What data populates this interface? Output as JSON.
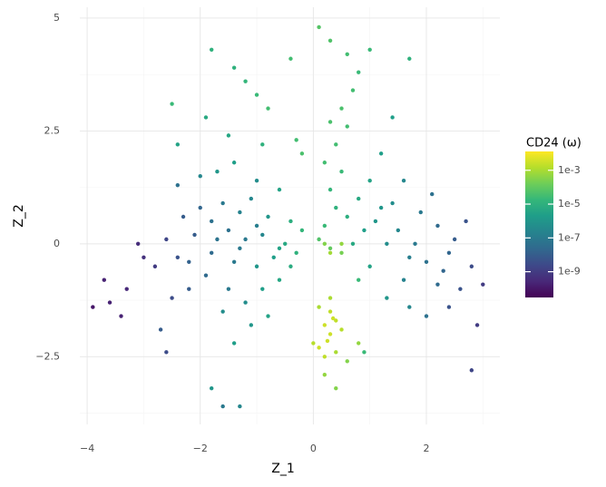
{
  "chart_data": {
    "type": "scatter",
    "x_label": "Z_1",
    "y_label": "Z_2",
    "xlim": [
      -4.13,
      3.3
    ],
    "ylim": [
      -4.0,
      5.24
    ],
    "xticks": [
      {
        "value": -4,
        "label": "−4"
      },
      {
        "value": -2,
        "label": "−2"
      },
      0,
      2
    ],
    "yticks": [
      {
        "value": -2.5,
        "label": "−2.5"
      },
      0,
      2.5,
      5
    ],
    "grid": true,
    "colorbar_title": "CD24 (ω)",
    "color_scale": "log",
    "colormap": "viridis",
    "clim": [
      3e-11,
      0.013
    ],
    "cticks": [
      {
        "value": 0.001,
        "label": "1e-3"
      },
      {
        "value": 1e-05,
        "label": "1e-5"
      },
      {
        "value": 1e-07,
        "label": "1e-7"
      },
      {
        "value": 1e-09,
        "label": "1e-9"
      }
    ],
    "x": [
      -1.2,
      -1.5,
      -0.9,
      -1.8,
      -2.1,
      -2.4,
      -1.0,
      -0.7,
      -0.5,
      -0.3,
      -1.3,
      -1.6,
      -1.1,
      -0.8,
      -2.0,
      -2.3,
      -1.9,
      -1.5,
      -1.2,
      -0.9,
      -0.6,
      -1.4,
      -1.7,
      -2.6,
      -2.8,
      -2.2,
      -1.0,
      -1.4,
      -1.7,
      -2.0,
      -0.6,
      -0.4,
      -0.2,
      -1.1,
      -1.4,
      -0.8,
      -1.6,
      -2.5,
      -3.0,
      -3.3,
      -3.6,
      -3.1,
      -2.4,
      -2.7,
      -1.3,
      -1.0,
      -0.6,
      -0.4,
      -1.8,
      -2.2,
      -1.4,
      -1.2,
      -1.0,
      -0.8,
      -1.8,
      -0.3,
      -0.2,
      -2.4,
      -1.9,
      -1.5,
      -0.9,
      -2.5,
      -0.4,
      0.4,
      0.6,
      0.3,
      0.5,
      0.8,
      0.2,
      0.1,
      0.3,
      0.5,
      0.4,
      0.6,
      0.5,
      0.7,
      0.8,
      0.6,
      0.3,
      0.1,
      1.0,
      1.2,
      0.9,
      0.7,
      1.0,
      0.8,
      1.2,
      0.3,
      0.2,
      1.5,
      1.8,
      2.0,
      2.3,
      2.6,
      1.6,
      1.4,
      1.9,
      2.2,
      2.5,
      2.8,
      3.0,
      2.9,
      2.8,
      2.4,
      1.3,
      1.7,
      2.0,
      1.1,
      1.6,
      2.1,
      1.3,
      2.4,
      1.7,
      2.7,
      1.4,
      1.7,
      1.0,
      2.2,
      0.9,
      0.3,
      0.2,
      0.4,
      0.3,
      0.1,
      0.2,
      0.0,
      0.4,
      0.5,
      0.3,
      0.2,
      0.6,
      0.8,
      0.1,
      0.3,
      0.5,
      0.2,
      0.4,
      0.25,
      0.35,
      -3.7,
      -3.9,
      -3.4,
      -2.6,
      -1.6,
      -1.3,
      -1.8
    ],
    "y": [
      0.1,
      0.3,
      0.2,
      -0.2,
      0.2,
      -0.3,
      -0.5,
      -0.3,
      0,
      -0.2,
      0.7,
      0.9,
      1.0,
      0.6,
      0.8,
      0.6,
      -0.7,
      -1.0,
      -1.3,
      -1.0,
      -0.8,
      -0.4,
      0.1,
      0.1,
      -0.5,
      -1.0,
      1.4,
      1.8,
      1.6,
      1.5,
      1.2,
      0.5,
      0.3,
      -1.8,
      -2.2,
      -1.6,
      -1.5,
      -1.2,
      -0.3,
      -1.0,
      -1.3,
      0,
      1.3,
      -1.9,
      -0.1,
      0.4,
      -0.1,
      -0.5,
      0.5,
      -0.4,
      3.9,
      3.6,
      3.3,
      3.0,
      4.3,
      2.3,
      2.0,
      2.2,
      2.8,
      2.4,
      2.2,
      3.1,
      4.1,
      0.8,
      0.6,
      1.2,
      1.6,
      1.0,
      0.4,
      0.1,
      -0.1,
      -0.2,
      2.2,
      2.6,
      3.0,
      3.4,
      3.8,
      4.2,
      4.5,
      4.8,
      1.4,
      0.8,
      0.3,
      0.0,
      -0.5,
      -0.8,
      2.0,
      2.7,
      1.8,
      0.3,
      0,
      -0.4,
      -0.6,
      -1.0,
      -0.8,
      0.9,
      0.7,
      0.4,
      0.1,
      -0.5,
      -0.9,
      -1.8,
      -2.8,
      -1.4,
      -1.2,
      -1.4,
      -1.6,
      0.5,
      1.4,
      1.1,
      0.0,
      -0.2,
      -0.3,
      0.5,
      2.8,
      4.1,
      4.3,
      -0.9,
      -2.4,
      -1.5,
      -1.8,
      -1.7,
      -2.0,
      -2.3,
      -2.5,
      -2.2,
      -2.4,
      -1.9,
      -1.2,
      -2.9,
      -2.6,
      -2.2,
      -1.4,
      -0.2,
      0.0,
      0.0,
      -3.2,
      -2.15,
      -1.65,
      -0.8,
      -1.4,
      -1.6,
      -2.4,
      -3.6,
      -3.6,
      -3.2
    ],
    "values": [
      1e-07,
      5e-08,
      3e-07,
      3e-08,
      1e-08,
      5e-09,
      1e-06,
      2e-06,
      5e-06,
      1e-05,
      2e-07,
      1e-07,
      3e-07,
      1e-06,
      2e-08,
      1e-08,
      3e-08,
      1e-07,
      5e-07,
      2e-06,
      4e-06,
      1e-07,
      6e-08,
      2e-09,
      1e-09,
      1e-08,
      5e-07,
      2e-06,
      1e-06,
      3e-07,
      3e-06,
      8e-06,
      1.5e-05,
      1e-06,
      2e-06,
      3e-06,
      5e-07,
      3e-09,
      5e-10,
      3e-10,
      2e-10,
      4e-10,
      5e-08,
      1e-08,
      1e-07,
      1.5e-07,
      3e-06,
      6e-06,
      5e-08,
      1.5e-08,
      1e-05,
      1.5e-05,
      2e-05,
      3e-05,
      1e-05,
      3e-05,
      4e-05,
      3e-06,
      5e-06,
      4e-06,
      1e-05,
      2e-05,
      3e-05,
      1e-05,
      8e-06,
      1.5e-05,
      2e-05,
      5e-06,
      2e-05,
      5e-05,
      0.0001,
      0.0002,
      3e-05,
      3e-05,
      4e-05,
      3e-05,
      2e-05,
      3e-05,
      5e-05,
      6e-05,
      3e-06,
      1e-06,
      2e-06,
      5e-06,
      3e-06,
      2e-05,
      2e-06,
      4e-05,
      3e-05,
      3e-07,
      1e-07,
      5e-08,
      2e-08,
      5e-09,
      2e-07,
      5e-07,
      1e-07,
      3e-08,
      1e-08,
      3e-09,
      1e-09,
      1e-09,
      2e-09,
      5e-09,
      1e-06,
      3e-07,
      5e-08,
      1e-06,
      3e-07,
      5e-08,
      5e-07,
      2e-08,
      1.5e-07,
      5e-09,
      2e-06,
      1e-05,
      2e-05,
      3e-08,
      2e-05,
      0.002,
      0.003,
      0.002,
      0.003,
      0.003,
      0.002,
      0.0015,
      0.001,
      0.0015,
      0.001,
      0.0005,
      0.0003,
      0.0005,
      0.001,
      0.0008,
      0.0005,
      0.0003,
      0.0003,
      0.003,
      0.003,
      2e-10,
      1e-10,
      2e-10,
      3e-09,
      1e-07,
      3e-07,
      1e-06
    ]
  }
}
